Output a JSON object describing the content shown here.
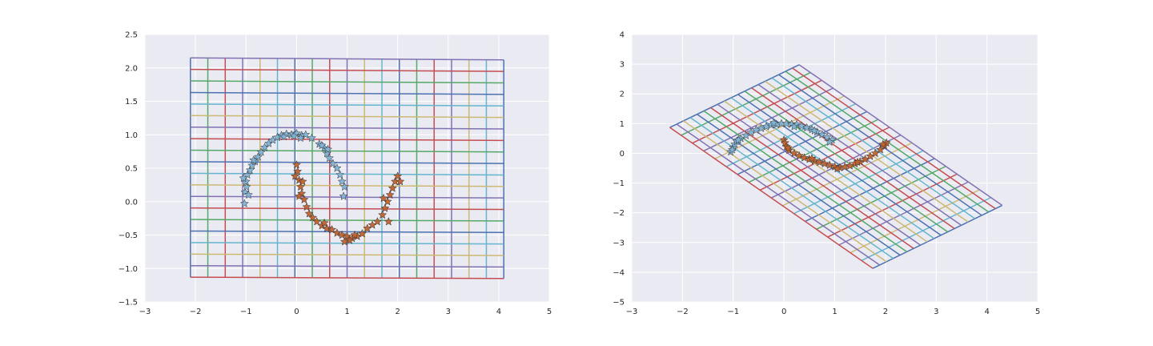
{
  "chart_data": [
    {
      "type": "scatter",
      "title": "",
      "xlabel": "",
      "ylabel": "",
      "xlim": [
        -3,
        5
      ],
      "ylim": [
        -1.5,
        2.5
      ],
      "xticks": [
        "−3",
        "−2",
        "−1",
        "0",
        "1",
        "2",
        "3",
        "4",
        "5"
      ],
      "xtick_values": [
        -3,
        -2,
        -1,
        0,
        1,
        2,
        3,
        4,
        5
      ],
      "yticks": [
        "−1.5",
        "−1.0",
        "−0.5",
        "0.0",
        "0.5",
        "1.0",
        "1.5",
        "2.0",
        "2.5"
      ],
      "ytick_values": [
        -1.5,
        -1.0,
        -0.5,
        0.0,
        0.5,
        1.0,
        1.5,
        2.0,
        2.5
      ],
      "grid": true,
      "mesh": {
        "corners": {
          "ll": [
            -2.1,
            -1.13
          ],
          "lr": [
            4.1,
            -1.15
          ],
          "ul": [
            -2.1,
            2.15
          ],
          "ur": [
            4.1,
            2.12
          ]
        },
        "columns": 19,
        "rows": 20
      },
      "series": [
        {
          "marker": "star",
          "color": "#7fb3d5",
          "points": [
            [
              -1.03,
              -0.03
            ],
            [
              -1.02,
              0.14
            ],
            [
              -0.99,
              0.22
            ],
            [
              -1.0,
              0.3
            ],
            [
              -0.97,
              0.4
            ],
            [
              -0.92,
              0.47
            ],
            [
              -0.88,
              0.54
            ],
            [
              -0.82,
              0.6
            ],
            [
              -0.76,
              0.67
            ],
            [
              -0.7,
              0.74
            ],
            [
              -0.63,
              0.81
            ],
            [
              -0.55,
              0.87
            ],
            [
              -0.47,
              0.92
            ],
            [
              -0.38,
              0.96
            ],
            [
              -0.3,
              0.99
            ],
            [
              -0.2,
              1.01
            ],
            [
              -0.1,
              1.0
            ],
            [
              0.0,
              1.02
            ],
            [
              0.1,
              0.99
            ],
            [
              0.18,
              1.0
            ],
            [
              0.08,
              0.95
            ],
            [
              -0.05,
              0.98
            ],
            [
              0.45,
              0.86
            ],
            [
              0.55,
              0.8
            ],
            [
              0.6,
              0.72
            ],
            [
              0.65,
              0.65
            ],
            [
              0.72,
              0.57
            ],
            [
              0.8,
              0.5
            ],
            [
              0.86,
              0.4
            ],
            [
              0.9,
              0.3
            ],
            [
              0.95,
              0.22
            ],
            [
              -0.95,
              0.1
            ],
            [
              -1.05,
              0.35
            ],
            [
              -0.85,
              0.62
            ],
            [
              0.5,
              0.84
            ],
            [
              0.62,
              0.78
            ],
            [
              0.93,
              0.08
            ],
            [
              -0.25,
              0.97
            ],
            [
              0.3,
              0.95
            ]
          ]
        },
        {
          "marker": "star",
          "color": "#c0622e",
          "points": [
            [
              0.0,
              0.55
            ],
            [
              0.02,
              0.45
            ],
            [
              -0.03,
              0.38
            ],
            [
              0.05,
              0.32
            ],
            [
              0.08,
              0.22
            ],
            [
              0.1,
              0.12
            ],
            [
              0.15,
              0.03
            ],
            [
              0.2,
              -0.08
            ],
            [
              0.25,
              -0.18
            ],
            [
              0.32,
              -0.24
            ],
            [
              0.4,
              -0.3
            ],
            [
              0.5,
              -0.36
            ],
            [
              0.6,
              -0.4
            ],
            [
              0.7,
              -0.42
            ],
            [
              0.8,
              -0.47
            ],
            [
              0.9,
              -0.5
            ],
            [
              1.0,
              -0.52
            ],
            [
              1.1,
              -0.55
            ],
            [
              1.2,
              -0.52
            ],
            [
              1.3,
              -0.48
            ],
            [
              1.4,
              -0.4
            ],
            [
              1.5,
              -0.35
            ],
            [
              1.6,
              -0.3
            ],
            [
              1.7,
              -0.2
            ],
            [
              1.75,
              -0.1
            ],
            [
              1.8,
              0.0
            ],
            [
              1.85,
              0.1
            ],
            [
              1.9,
              0.2
            ],
            [
              1.95,
              0.3
            ],
            [
              2.0,
              0.38
            ],
            [
              2.05,
              0.3
            ],
            [
              1.82,
              -0.3
            ],
            [
              1.72,
              0.05
            ],
            [
              1.05,
              -0.58
            ],
            [
              0.95,
              -0.6
            ],
            [
              1.15,
              -0.5
            ],
            [
              0.05,
              0.08
            ],
            [
              0.12,
              0.3
            ],
            [
              0.55,
              -0.32
            ]
          ]
        }
      ]
    },
    {
      "type": "scatter",
      "title": "",
      "xlabel": "",
      "ylabel": "",
      "xlim": [
        -3,
        5
      ],
      "ylim": [
        -5,
        4
      ],
      "xticks": [
        "−3",
        "−2",
        "−1",
        "0",
        "1",
        "2",
        "3",
        "4",
        "5"
      ],
      "xtick_values": [
        -3,
        -2,
        -1,
        0,
        1,
        2,
        3,
        4,
        5
      ],
      "yticks": [
        "−5",
        "−4",
        "−3",
        "−2",
        "−1",
        "0",
        "1",
        "2",
        "3",
        "4"
      ],
      "ytick_values": [
        -5,
        -4,
        -3,
        -2,
        -1,
        0,
        1,
        2,
        3,
        4
      ],
      "grid": true,
      "mesh": {
        "corners": {
          "ll": [
            -2.25,
            0.87
          ],
          "lr": [
            1.75,
            -3.87
          ],
          "ul": [
            0.3,
            2.98
          ],
          "ur": [
            4.3,
            -1.75
          ]
        },
        "columns": 19,
        "rows": 20
      },
      "series": [
        {
          "marker": "star",
          "color": "#7fb3d5",
          "points": [
            [
              -1.05,
              0.05
            ],
            [
              -1.0,
              0.2
            ],
            [
              -0.97,
              0.3
            ],
            [
              -0.93,
              0.4
            ],
            [
              -0.85,
              0.5
            ],
            [
              -0.75,
              0.6
            ],
            [
              -0.65,
              0.7
            ],
            [
              -0.55,
              0.78
            ],
            [
              -0.45,
              0.84
            ],
            [
              -0.35,
              0.9
            ],
            [
              -0.25,
              0.95
            ],
            [
              -0.15,
              0.97
            ],
            [
              -0.05,
              1.0
            ],
            [
              0.05,
              1.0
            ],
            [
              0.15,
              0.98
            ],
            [
              0.25,
              0.97
            ],
            [
              0.35,
              0.92
            ],
            [
              0.45,
              0.86
            ],
            [
              0.55,
              0.8
            ],
            [
              0.65,
              0.72
            ],
            [
              0.75,
              0.63
            ],
            [
              0.85,
              0.54
            ],
            [
              0.95,
              0.45
            ],
            [
              -1.02,
              0.12
            ],
            [
              -0.9,
              0.45
            ],
            [
              0.2,
              0.9
            ],
            [
              0.6,
              0.76
            ],
            [
              0.9,
              0.38
            ],
            [
              -0.2,
              1.02
            ]
          ]
        },
        {
          "marker": "star",
          "color": "#c0622e",
          "points": [
            [
              0.0,
              0.45
            ],
            [
              0.02,
              0.35
            ],
            [
              0.05,
              0.22
            ],
            [
              0.1,
              0.1
            ],
            [
              0.2,
              0.0
            ],
            [
              0.3,
              -0.08
            ],
            [
              0.4,
              -0.15
            ],
            [
              0.5,
              -0.2
            ],
            [
              0.6,
              -0.25
            ],
            [
              0.7,
              -0.3
            ],
            [
              0.8,
              -0.35
            ],
            [
              0.9,
              -0.4
            ],
            [
              1.0,
              -0.45
            ],
            [
              1.1,
              -0.48
            ],
            [
              1.2,
              -0.46
            ],
            [
              1.3,
              -0.42
            ],
            [
              1.4,
              -0.35
            ],
            [
              1.5,
              -0.28
            ],
            [
              1.6,
              -0.2
            ],
            [
              1.7,
              -0.1
            ],
            [
              1.8,
              0.0
            ],
            [
              1.9,
              0.12
            ],
            [
              1.98,
              0.25
            ],
            [
              2.02,
              0.35
            ],
            [
              1.95,
              0.3
            ],
            [
              1.05,
              -0.52
            ],
            [
              0.55,
              -0.18
            ],
            [
              0.08,
              0.18
            ],
            [
              1.45,
              -0.3
            ]
          ]
        }
      ]
    }
  ]
}
